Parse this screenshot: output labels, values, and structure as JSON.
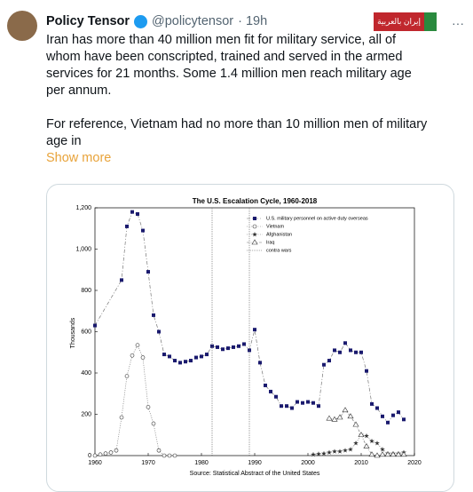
{
  "tweet": {
    "name": "Policy Tensor",
    "handle": "@policytensor",
    "time": "· 19h",
    "badge": "إيران بالعربية",
    "paragraphs": [
      [
        "Iran has more than 40 million men fit for military service, all of",
        "whom have been conscripted, trained and served in the armed",
        "services for 21 months. Some 1.4 million men reach military age",
        "per annum."
      ],
      [
        "For reference, Vietnam had no more than 10 million men of military",
        "age in"
      ]
    ],
    "show_more": "Show more"
  },
  "chart_data": {
    "type": "line",
    "title": "The U.S. Escalation Cycle, 1960-2018",
    "xlabel": "Source: Statistical Abstract of the United States",
    "ylabel": "Thousands",
    "xlim": [
      1960,
      2020
    ],
    "xticks": [
      1960,
      1970,
      1980,
      1990,
      2000,
      2010,
      2020
    ],
    "ylim": [
      0,
      1200
    ],
    "yticks": [
      0,
      200,
      400,
      600,
      800,
      {
        "value": 1000,
        "label": "1,000"
      },
      {
        "value": 1200,
        "label": "1,200"
      }
    ],
    "legend": "upper right",
    "series": [
      {
        "name": "U.S. military personnel on active duty overseas",
        "color": "#1a1a6e",
        "marker": "square",
        "x": [
          1960,
          1965,
          1966,
          1967,
          1968,
          1969,
          1970,
          1971,
          1972,
          1973,
          1974,
          1975,
          1976,
          1977,
          1978,
          1979,
          1980,
          1981,
          1982,
          1983,
          1984,
          1985,
          1986,
          1987,
          1988,
          1989,
          1990,
          1991,
          1992,
          1993,
          1994,
          1995,
          1996,
          1997,
          1998,
          1999,
          2000,
          2001,
          2002,
          2003,
          2004,
          2005,
          2006,
          2007,
          2008,
          2009,
          2010,
          2011,
          2012,
          2013,
          2014,
          2015,
          2016,
          2017,
          2018
        ],
        "values": [
          630,
          850,
          1110,
          1180,
          1170,
          1090,
          890,
          680,
          600,
          490,
          480,
          460,
          450,
          455,
          460,
          475,
          480,
          490,
          530,
          525,
          515,
          520,
          525,
          530,
          540,
          510,
          610,
          450,
          340,
          310,
          285,
          240,
          240,
          230,
          260,
          255,
          260,
          255,
          240,
          440,
          460,
          510,
          500,
          545,
          510,
          500,
          500,
          410,
          250,
          230,
          190,
          160,
          195,
          210,
          175
        ]
      },
      {
        "name": "Vietnam",
        "color": "#333333",
        "marker": "circle",
        "x": [
          1960,
          1961,
          1962,
          1963,
          1964,
          1965,
          1966,
          1967,
          1968,
          1969,
          1970,
          1971,
          1972,
          1973,
          1974,
          1975
        ],
        "values": [
          0,
          5,
          10,
          15,
          25,
          185,
          385,
          485,
          535,
          475,
          235,
          155,
          25,
          0,
          0,
          0
        ]
      },
      {
        "name": "Afghanistan",
        "color": "#333333",
        "marker": "star",
        "x": [
          2001,
          2002,
          2003,
          2004,
          2005,
          2006,
          2007,
          2008,
          2009,
          2010,
          2011,
          2012,
          2013,
          2014,
          2015,
          2016,
          2017,
          2018
        ],
        "values": [
          5,
          8,
          10,
          15,
          20,
          20,
          25,
          30,
          60,
          100,
          95,
          70,
          60,
          30,
          10,
          10,
          10,
          15
        ]
      },
      {
        "name": "Iraq",
        "color": "#333333",
        "marker": "triangle",
        "x": [
          2004,
          2005,
          2006,
          2007,
          2008,
          2009,
          2010,
          2011,
          2012,
          2013,
          2014,
          2015,
          2016,
          2017,
          2018
        ],
        "values": [
          180,
          175,
          185,
          220,
          190,
          150,
          100,
          45,
          5,
          0,
          5,
          5,
          5,
          5,
          5
        ]
      },
      {
        "name": "contra wars",
        "color": "#555555",
        "marker": "vline",
        "x": [
          1982,
          1989
        ]
      }
    ]
  }
}
